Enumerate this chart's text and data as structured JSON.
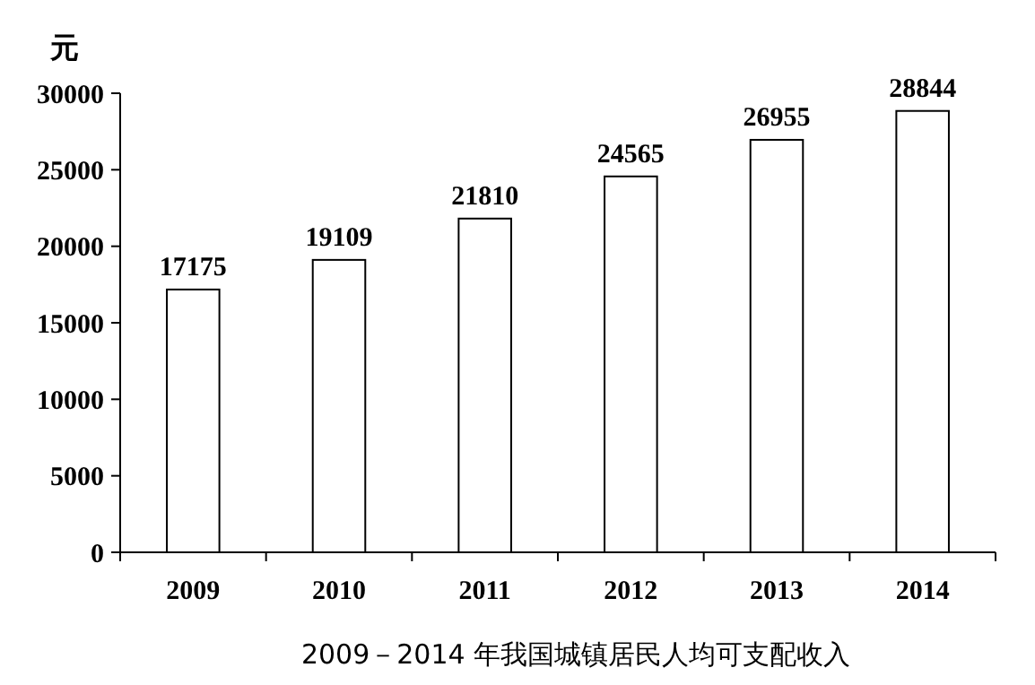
{
  "chart_data": {
    "type": "bar",
    "title": "2009－2014 年我国城镇居民人均可支配收入",
    "ylabel": "元",
    "categories": [
      "2009",
      "2010",
      "2011",
      "2012",
      "2013",
      "2014"
    ],
    "values": [
      17175,
      19109,
      21810,
      24565,
      26955,
      28844
    ],
    "color": "#ffffff",
    "ylim": [
      0,
      30000
    ],
    "yticks": [
      0,
      5000,
      10000,
      15000,
      20000,
      25000,
      30000
    ],
    "data_labels": true,
    "grid": false
  }
}
